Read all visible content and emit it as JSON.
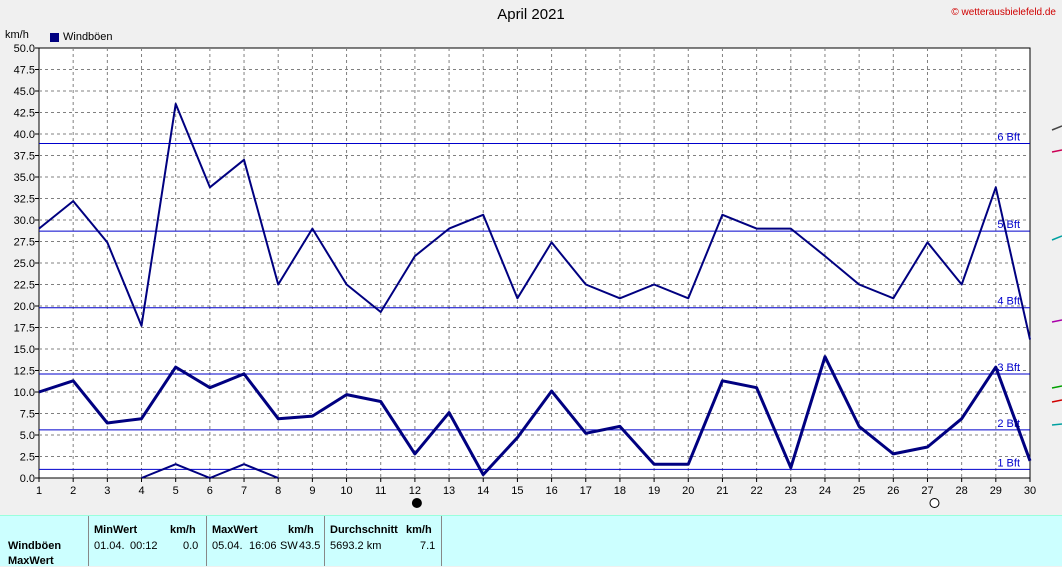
{
  "header": {
    "title": "April 2021",
    "copyright": "© wetterausbielefeld.de",
    "unit": "km/h",
    "legend_label": "Windböen"
  },
  "chart_data": {
    "type": "line",
    "title": "April 2021",
    "ylabel": "km/h",
    "xlabel": "",
    "ylim": [
      0,
      50
    ],
    "xlim": [
      1,
      30
    ],
    "grid": true,
    "x": [
      1,
      2,
      3,
      4,
      5,
      6,
      7,
      8,
      9,
      10,
      11,
      12,
      13,
      14,
      15,
      16,
      17,
      18,
      19,
      20,
      21,
      22,
      23,
      24,
      25,
      26,
      27,
      28,
      29,
      30
    ],
    "x_tick_labels": [
      "1",
      "2",
      "3",
      "4",
      "5",
      "6",
      "7",
      "8",
      "9",
      "10",
      "11",
      "12",
      "13",
      "14",
      "15",
      "16",
      "17",
      "18",
      "19",
      "20",
      "21",
      "22",
      "23",
      "24",
      "25",
      "26",
      "27",
      "28",
      "29",
      "30"
    ],
    "y_tick_labels": [
      "0.0",
      "2.5",
      "5.0",
      "7.5",
      "10.0",
      "12.5",
      "15.0",
      "17.5",
      "20.0",
      "22.5",
      "25.0",
      "27.5",
      "30.0",
      "32.5",
      "35.0",
      "37.5",
      "40.0",
      "42.5",
      "45.0",
      "47.5",
      "50.0"
    ],
    "series": [
      {
        "name": "Windböen",
        "color": "#000080",
        "values": [
          29.0,
          32.2,
          27.4,
          17.7,
          43.5,
          33.8,
          37.0,
          22.5,
          29.0,
          22.5,
          19.3,
          25.8,
          29.0,
          30.6,
          20.9,
          27.4,
          22.5,
          20.9,
          22.5,
          20.9,
          30.6,
          29.0,
          29.0,
          25.8,
          22.5,
          20.9,
          27.4,
          22.5,
          33.8,
          16.1
        ]
      },
      {
        "color": "#000080",
        "values": [
          10.0,
          11.3,
          6.4,
          6.9,
          12.9,
          10.5,
          12.1,
          6.9,
          7.2,
          9.7,
          8.9,
          2.8,
          7.6,
          0.4,
          4.7,
          10.1,
          5.2,
          6.0,
          1.6,
          1.6,
          11.3,
          10.5,
          1.2,
          14.1,
          6.0,
          2.8,
          3.6,
          6.9,
          12.9,
          2.0
        ]
      },
      {
        "color": "#000080",
        "values": [
          null,
          null,
          null,
          0.0,
          1.6,
          0.0,
          1.6,
          0.0,
          null,
          null,
          null,
          null,
          null,
          null,
          null,
          null,
          null,
          null,
          null,
          null,
          null,
          null,
          null,
          null,
          null,
          null,
          null,
          null,
          null,
          null
        ]
      }
    ],
    "reference_lines": [
      {
        "label": "1 Bft",
        "value": 1.0
      },
      {
        "label": "2 Bft",
        "value": 5.6
      },
      {
        "label": "3 Bft",
        "value": 12.1
      },
      {
        "label": "4 Bft",
        "value": 19.8
      },
      {
        "label": "5 Bft",
        "value": 28.7
      },
      {
        "label": "6 Bft",
        "value": 38.9
      }
    ],
    "moon_phases": [
      {
        "day": 12,
        "phase": "new-moon"
      },
      {
        "day": 27,
        "phase": "full-moon"
      }
    ]
  },
  "stats_panel": {
    "row_labels": [
      "Windböen",
      "MaxWert"
    ],
    "min": {
      "header": "MinWert",
      "unit": "km/h",
      "date": "01.04.",
      "time": "00:12",
      "value": "0.0"
    },
    "max": {
      "header": "MaxWert",
      "unit": "km/h",
      "date": "05.04.",
      "time": "16:06",
      "dir": "SW",
      "value": "43.5"
    },
    "avg": {
      "header": "Durchschnitt",
      "unit": "km/h",
      "distance": "5693.2 km",
      "value": "7.1"
    }
  }
}
